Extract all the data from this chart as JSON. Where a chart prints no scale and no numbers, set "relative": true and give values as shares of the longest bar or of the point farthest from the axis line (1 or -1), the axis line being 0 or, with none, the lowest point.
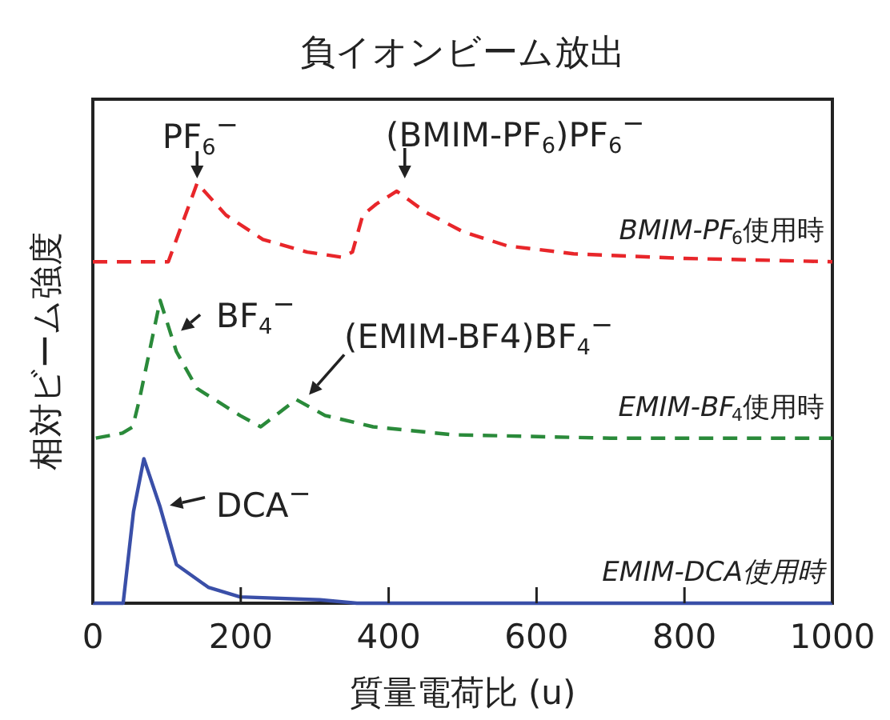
{
  "chart_data": {
    "type": "line",
    "title": "負イオンビーム放出",
    "xlabel": "質量電荷比 (u)",
    "ylabel": "相対ビーム強度",
    "relative": true,
    "xlim": [
      0,
      1000
    ],
    "xticks": [
      0,
      200,
      400,
      600,
      800,
      1000
    ],
    "grid": false,
    "marker": "none",
    "series": [
      {
        "name": "*BMIM-PF*$_{6}$使用時",
        "color": "#e8262a",
        "line_style": "dashed",
        "x": [
          0,
          102,
          141,
          180,
          230,
          290,
          336,
          351,
          365,
          383,
          411,
          450,
          500,
          560,
          650,
          800,
          1000
        ],
        "values": [
          0.813,
          0.813,
          1.0,
          0.924,
          0.866,
          0.836,
          0.824,
          0.836,
          0.924,
          0.95,
          0.981,
          0.931,
          0.885,
          0.851,
          0.832,
          0.821,
          0.813
        ]
      },
      {
        "name": "*EMIM-BF*$_{4}$使用時",
        "color": "#2a8a3a",
        "line_style": "dashed",
        "x": [
          4,
          40,
          54,
          63,
          91,
          113,
          141,
          199,
          227,
          275,
          314,
          379,
          487,
          700,
          1000
        ],
        "values": [
          0.393,
          0.405,
          0.42,
          0.485,
          0.721,
          0.599,
          0.511,
          0.447,
          0.42,
          0.485,
          0.447,
          0.42,
          0.401,
          0.393,
          0.393
        ]
      },
      {
        "name": "*EMIM-DCA使用時*",
        "color": "#3a4fa8",
        "line_style": "solid",
        "x": [
          0,
          41,
          55,
          69,
          91,
          113,
          156,
          199,
          307,
          357,
          1000
        ],
        "values": [
          0,
          0,
          0.218,
          0.344,
          0.229,
          0.092,
          0.038,
          0.015,
          0.008,
          0,
          0
        ]
      }
    ],
    "annotations": [
      {
        "text": "PF$_{6}$$^{−}$",
        "x": 141,
        "y": 1.0
      },
      {
        "text": "(BMIM-PF$_{6}$)PF$_{6}$$^{−}$",
        "x": 411,
        "y": 0.981
      },
      {
        "text": "BF$_{4}$$^{−}$",
        "x": 91,
        "y": 0.721
      },
      {
        "text": "(EMIM-BF4)BF$_{4}$$^{−}$",
        "x": 275,
        "y": 0.485
      },
      {
        "text": "DCA$^{−}$",
        "x": 91,
        "y": 0.229
      }
    ]
  }
}
